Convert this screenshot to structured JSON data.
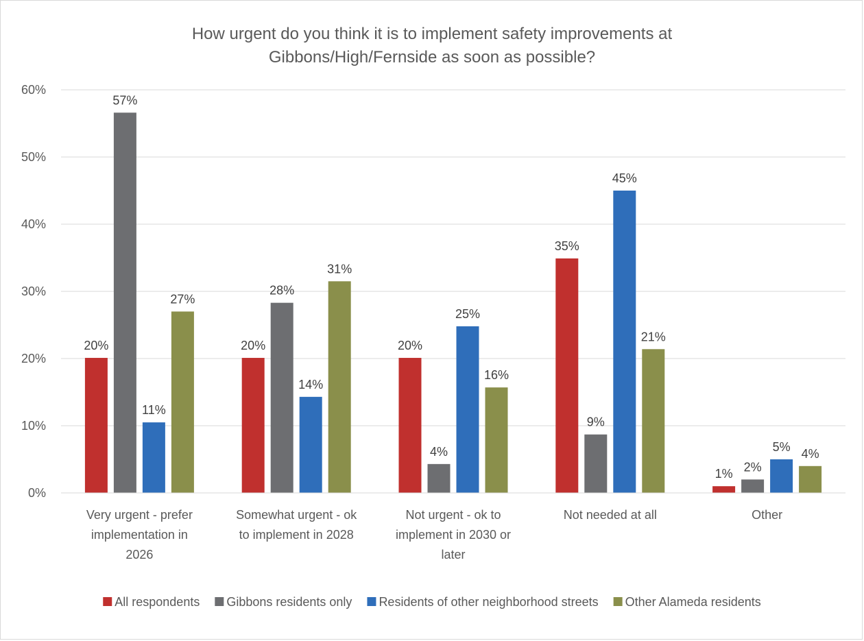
{
  "chart_data": {
    "type": "bar",
    "title": "How urgent do you think it is to implement safety improvements at Gibbons/High/Fernside as soon as possible?",
    "title_lines": [
      "How urgent do you think it is to implement safety improvements at",
      "Gibbons/High/Fernside as soon as possible?"
    ],
    "categories": [
      "Very urgent - prefer implementation in 2026",
      "Somewhat urgent - ok to implement in 2028",
      "Not urgent - ok to implement in 2030 or later",
      "Not needed at all",
      "Other"
    ],
    "category_lines": [
      [
        "Very urgent - prefer",
        "implementation in",
        "2026"
      ],
      [
        "Somewhat urgent - ok",
        "to implement in 2028"
      ],
      [
        "Not urgent - ok to",
        "implement in 2030 or",
        "later"
      ],
      [
        "Not needed at all"
      ],
      [
        "Other"
      ]
    ],
    "series": [
      {
        "name": "All respondents",
        "color": "#C0302E",
        "values": [
          20.1,
          20.1,
          20.1,
          34.9,
          1.0
        ],
        "labels": [
          "20%",
          "20%",
          "20%",
          "35%",
          "1%"
        ]
      },
      {
        "name": "Gibbons residents only",
        "color": "#6D6E71",
        "values": [
          56.6,
          28.3,
          4.3,
          8.7,
          2.0
        ],
        "labels": [
          "57%",
          "28%",
          "4%",
          "9%",
          "2%"
        ]
      },
      {
        "name": "Residents of other neighborhood streets",
        "color": "#2F6EBA",
        "values": [
          10.5,
          14.3,
          24.8,
          45.0,
          5.0
        ],
        "labels": [
          "11%",
          "14%",
          "25%",
          "45%",
          "5%"
        ]
      },
      {
        "name": "Other Alameda residents",
        "color": "#8A8F4B",
        "values": [
          27.0,
          31.5,
          15.7,
          21.4,
          4.0
        ],
        "labels": [
          "27%",
          "31%",
          "16%",
          "21%",
          "4%"
        ]
      }
    ],
    "ylim": [
      0,
      60
    ],
    "yticks": [
      0,
      10,
      20,
      30,
      40,
      50,
      60
    ],
    "ytick_labels": [
      "0%",
      "10%",
      "20%",
      "30%",
      "40%",
      "50%",
      "60%"
    ],
    "grid": true,
    "legend_position": "bottom"
  }
}
